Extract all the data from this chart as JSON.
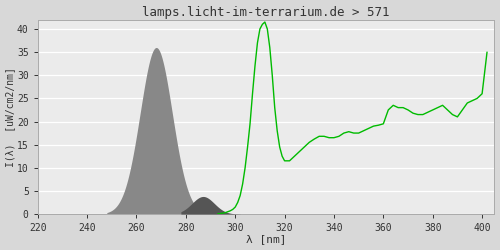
{
  "title": "lamps.licht-im-terrarium.de > 571",
  "xlabel": "λ [nm]",
  "ylabel": "I(λ)  [uW/cm2/nm]",
  "xlim": [
    220,
    405
  ],
  "ylim": [
    0,
    42
  ],
  "yticks": [
    0,
    5,
    10,
    15,
    20,
    25,
    30,
    35,
    40
  ],
  "xticks": [
    220,
    240,
    260,
    280,
    300,
    320,
    340,
    360,
    380,
    400
  ],
  "bg_color": "#d8d8d8",
  "plot_bg_color": "#ebebeb",
  "grid_color": "#ffffff",
  "fill_color_light": "#888888",
  "fill_color_dark": "#555555",
  "line_color": "#00bb00",
  "title_color": "#333333",
  "font_family": "monospace",
  "green_x": [
    293,
    294,
    295,
    296,
    297,
    298,
    299,
    300,
    301,
    302,
    303,
    304,
    305,
    306,
    307,
    308,
    309,
    310,
    311,
    312,
    313,
    314,
    315,
    316,
    317,
    318,
    319,
    320,
    322,
    324,
    326,
    328,
    330,
    332,
    334,
    336,
    338,
    340,
    342,
    344,
    346,
    348,
    350,
    352,
    354,
    356,
    358,
    360,
    362,
    364,
    366,
    368,
    370,
    372,
    374,
    376,
    378,
    380,
    382,
    384,
    386,
    388,
    390,
    392,
    394,
    396,
    398,
    400,
    402
  ],
  "green_y": [
    0.1,
    0.1,
    0.2,
    0.3,
    0.5,
    0.7,
    1.0,
    1.5,
    2.5,
    4.0,
    6.5,
    10.0,
    14.5,
    19.5,
    26.0,
    32.0,
    37.0,
    40.0,
    41.0,
    41.5,
    40.0,
    36.0,
    30.0,
    23.0,
    18.0,
    14.5,
    12.5,
    11.5,
    11.5,
    12.5,
    13.5,
    14.5,
    15.5,
    16.2,
    16.8,
    16.8,
    16.5,
    16.5,
    16.8,
    17.5,
    17.8,
    17.5,
    17.5,
    18.0,
    18.5,
    19.0,
    19.2,
    19.5,
    22.5,
    23.5,
    23.0,
    23.0,
    22.5,
    21.8,
    21.5,
    21.5,
    22.0,
    22.5,
    23.0,
    23.5,
    22.5,
    21.5,
    21.0,
    22.5,
    24.0,
    24.5,
    25.0,
    26.0,
    35.0
  ]
}
